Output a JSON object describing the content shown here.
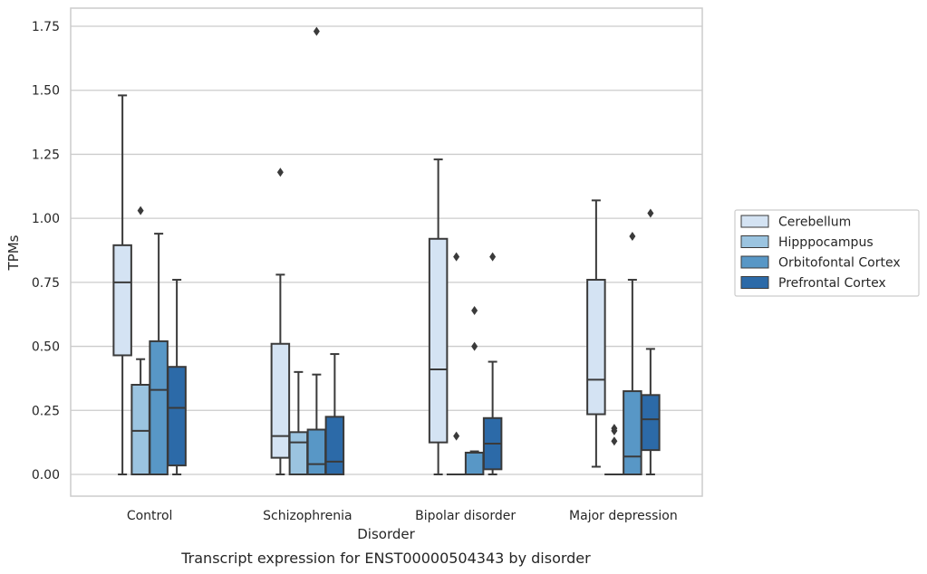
{
  "chart_data": {
    "type": "box",
    "title": "",
    "caption": "Transcript expression for ENST00000504343 by disorder",
    "xlabel": "Disorder",
    "ylabel": "TPMs",
    "ylim": [
      -0.085,
      1.82
    ],
    "yticks": [
      0.0,
      0.25,
      0.5,
      0.75,
      1.0,
      1.25,
      1.5,
      1.75
    ],
    "ytick_labels": [
      "0.00",
      "0.25",
      "0.50",
      "0.75",
      "1.00",
      "1.25",
      "1.50",
      "1.75"
    ],
    "grid": true,
    "legend_position": "right",
    "categories": [
      "Control",
      "Schizophrenia",
      "Bipolar disorder",
      "Major depression"
    ],
    "series": [
      {
        "name": "Cerebellum",
        "color": "#d4e3f3",
        "boxes": [
          {
            "whisker_low": 0.0,
            "q1": 0.465,
            "median": 0.75,
            "q3": 0.895,
            "whisker_high": 1.48,
            "outliers": []
          },
          {
            "whisker_low": 0.0,
            "q1": 0.065,
            "median": 0.15,
            "q3": 0.51,
            "whisker_high": 0.78,
            "outliers": [
              1.18
            ]
          },
          {
            "whisker_low": 0.0,
            "q1": 0.125,
            "median": 0.41,
            "q3": 0.92,
            "whisker_high": 1.23,
            "outliers": []
          },
          {
            "whisker_low": 0.03,
            "q1": 0.235,
            "median": 0.37,
            "q3": 0.76,
            "whisker_high": 1.07,
            "outliers": []
          }
        ]
      },
      {
        "name": "Hipppocampus",
        "color": "#9bc4e0",
        "boxes": [
          {
            "whisker_low": 0.0,
            "q1": 0.0,
            "median": 0.17,
            "q3": 0.35,
            "whisker_high": 0.45,
            "outliers": [
              1.03
            ]
          },
          {
            "whisker_low": 0.0,
            "q1": 0.0,
            "median": 0.125,
            "q3": 0.165,
            "whisker_high": 0.4,
            "outliers": []
          },
          {
            "whisker_low": 0.0,
            "q1": 0.0,
            "median": 0.0,
            "q3": 0.0,
            "whisker_high": 0.0,
            "outliers": [
              0.85,
              0.15
            ]
          },
          {
            "whisker_low": 0.0,
            "q1": 0.0,
            "median": 0.0,
            "q3": 0.0,
            "whisker_high": 0.0,
            "outliers": [
              0.18,
              0.17,
              0.13
            ]
          }
        ]
      },
      {
        "name": "Orbitofontal Cortex",
        "color": "#5897c6",
        "boxes": [
          {
            "whisker_low": 0.0,
            "q1": 0.0,
            "median": 0.33,
            "q3": 0.52,
            "whisker_high": 0.94,
            "outliers": []
          },
          {
            "whisker_low": 0.0,
            "q1": 0.0,
            "median": 0.04,
            "q3": 0.175,
            "whisker_high": 0.39,
            "outliers": [
              1.73
            ]
          },
          {
            "whisker_low": 0.0,
            "q1": 0.0,
            "median": 0.085,
            "q3": 0.085,
            "whisker_high": 0.09,
            "outliers": [
              0.64,
              0.5
            ]
          },
          {
            "whisker_low": 0.0,
            "q1": 0.0,
            "median": 0.07,
            "q3": 0.325,
            "whisker_high": 0.76,
            "outliers": [
              0.93
            ]
          }
        ]
      },
      {
        "name": "Prefrontal Cortex",
        "color": "#2c6aa8",
        "boxes": [
          {
            "whisker_low": 0.0,
            "q1": 0.035,
            "median": 0.26,
            "q3": 0.42,
            "whisker_high": 0.76,
            "outliers": []
          },
          {
            "whisker_low": 0.0,
            "q1": 0.0,
            "median": 0.05,
            "q3": 0.225,
            "whisker_high": 0.47,
            "outliers": []
          },
          {
            "whisker_low": 0.0,
            "q1": 0.02,
            "median": 0.12,
            "q3": 0.22,
            "whisker_high": 0.44,
            "outliers": [
              0.85
            ]
          },
          {
            "whisker_low": 0.0,
            "q1": 0.095,
            "median": 0.215,
            "q3": 0.31,
            "whisker_high": 0.49,
            "outliers": [
              1.02
            ]
          }
        ]
      }
    ]
  }
}
